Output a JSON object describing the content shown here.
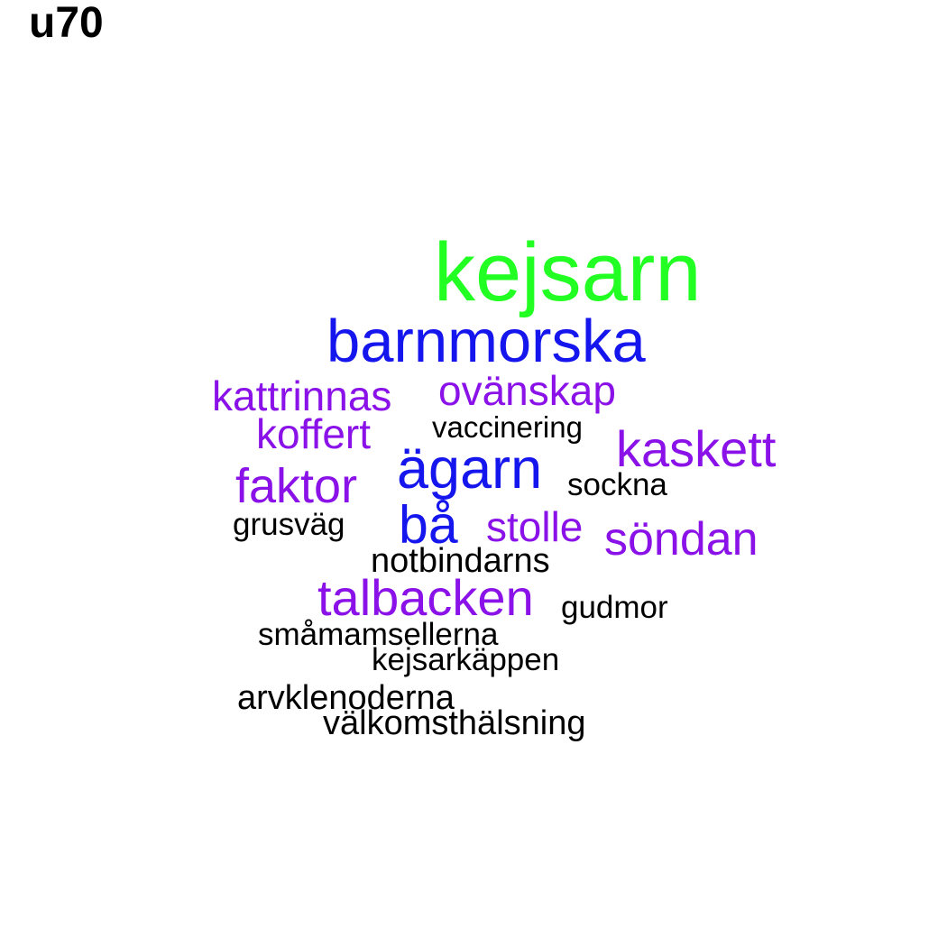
{
  "title": "u70",
  "colors": {
    "green": "#22ff22",
    "blue": "#1515ee",
    "purple": "#8a12e8",
    "black": "#000000"
  },
  "words": [
    {
      "text": "kejsarn",
      "color": "green"
    },
    {
      "text": "barnmorska",
      "color": "blue"
    },
    {
      "text": "kattrinnas",
      "color": "purple"
    },
    {
      "text": "ovänskap",
      "color": "purple"
    },
    {
      "text": "koffert",
      "color": "purple"
    },
    {
      "text": "vaccinering",
      "color": "black"
    },
    {
      "text": "kaskett",
      "color": "purple"
    },
    {
      "text": "ägarn",
      "color": "blue"
    },
    {
      "text": "faktor",
      "color": "purple"
    },
    {
      "text": "sockna",
      "color": "black"
    },
    {
      "text": "grusväg",
      "color": "black"
    },
    {
      "text": "bå",
      "color": "blue"
    },
    {
      "text": "stolle",
      "color": "purple"
    },
    {
      "text": "söndan",
      "color": "purple"
    },
    {
      "text": "notbindarns",
      "color": "black"
    },
    {
      "text": "talbacken",
      "color": "purple"
    },
    {
      "text": "gudmor",
      "color": "black"
    },
    {
      "text": "småmamsellerna",
      "color": "black"
    },
    {
      "text": "kejsarkäppen",
      "color": "black"
    },
    {
      "text": "arvklenoderna",
      "color": "black"
    },
    {
      "text": "välkomsthälsning",
      "color": "black"
    }
  ]
}
